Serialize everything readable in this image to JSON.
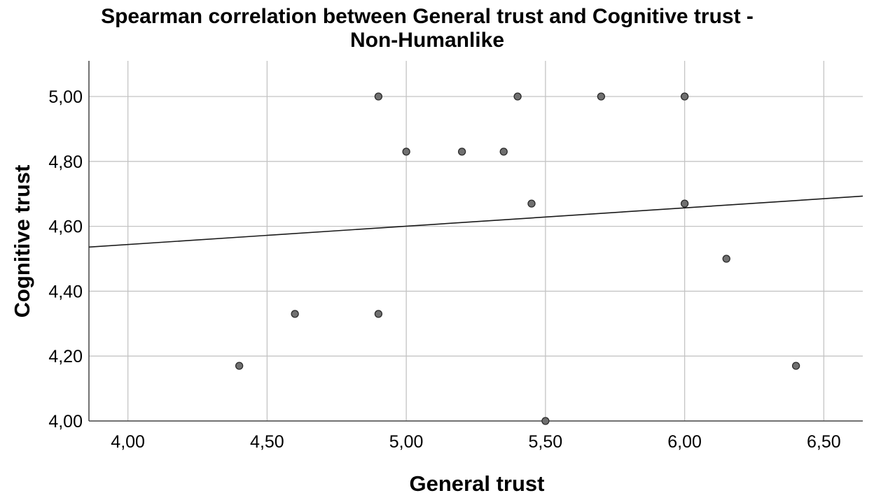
{
  "chart_data": {
    "type": "scatter",
    "title": [
      "Spearman correlation between General trust and Cognitive trust -",
      "Non-Humanlike"
    ],
    "xlabel": "General trust",
    "ylabel": "Cognitive trust",
    "xlim": [
      3.86,
      6.64
    ],
    "ylim": [
      4.0,
      5.11
    ],
    "xticks": [
      4.0,
      4.5,
      5.0,
      5.5,
      6.0,
      6.5
    ],
    "xtick_labels": [
      "4,00",
      "4,50",
      "5,00",
      "5,50",
      "6,00",
      "6,50"
    ],
    "yticks": [
      4.0,
      4.2,
      4.4,
      4.6,
      4.8,
      5.0
    ],
    "ytick_labels": [
      "4,00",
      "4,20",
      "4,40",
      "4,60",
      "4,80",
      "5,00"
    ],
    "grid": true,
    "points": [
      {
        "x": 4.9,
        "y": 5.0
      },
      {
        "x": 5.4,
        "y": 5.0
      },
      {
        "x": 5.7,
        "y": 5.0
      },
      {
        "x": 6.0,
        "y": 5.0
      },
      {
        "x": 5.0,
        "y": 4.83
      },
      {
        "x": 5.2,
        "y": 4.83
      },
      {
        "x": 5.35,
        "y": 4.83
      },
      {
        "x": 5.45,
        "y": 4.67
      },
      {
        "x": 6.0,
        "y": 4.67
      },
      {
        "x": 6.15,
        "y": 4.5
      },
      {
        "x": 4.6,
        "y": 4.33
      },
      {
        "x": 4.9,
        "y": 4.33
      },
      {
        "x": 4.4,
        "y": 4.17
      },
      {
        "x": 6.4,
        "y": 4.17
      },
      {
        "x": 5.5,
        "y": 4.0
      }
    ],
    "fit_line": {
      "x": [
        3.86,
        6.64
      ],
      "y": [
        4.536,
        4.693
      ]
    }
  }
}
